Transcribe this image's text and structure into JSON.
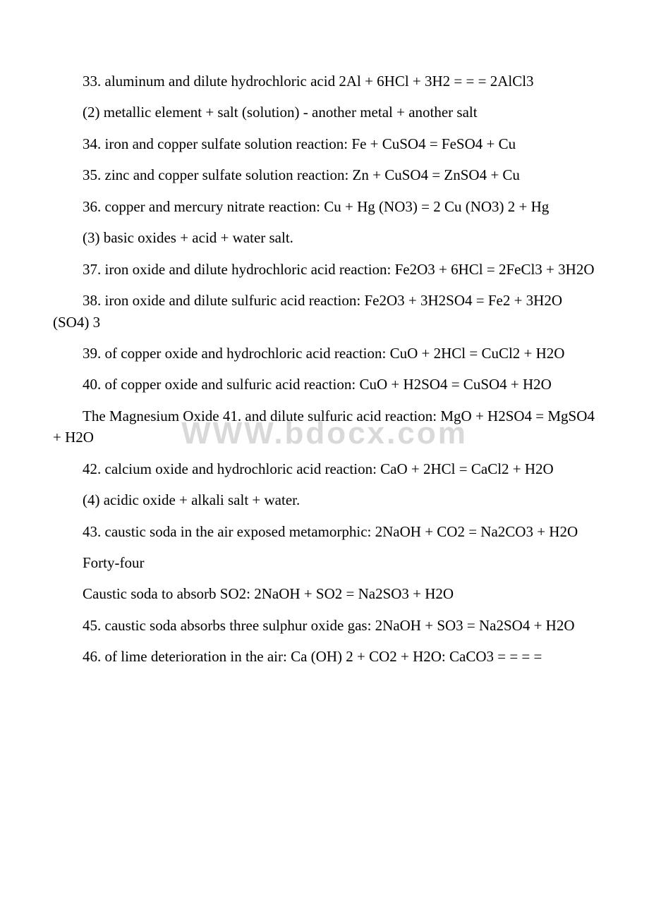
{
  "watermark": "WWW.bdocx.com",
  "paragraphs": [
    "33. aluminum and dilute hydrochloric acid 2Al + 6HCl + 3H2 = = = 2AlCl3",
    "(2) metallic element + salt (solution) - another metal + another salt",
    "34. iron and copper sulfate solution reaction: Fe + CuSO4 = FeSO4 + Cu",
    "35. zinc and copper sulfate solution reaction: Zn + CuSO4 = ZnSO4 + Cu",
    "36. copper and mercury nitrate reaction: Cu + Hg (NO3) = 2 Cu (NO3) 2 + Hg",
    "(3) basic oxides + acid + water salt.",
    "37. iron oxide and dilute hydrochloric acid reaction: Fe2O3 + 6HCl = 2FeCl3 + 3H2O",
    "38. iron oxide and dilute sulfuric acid reaction: Fe2O3 + 3H2SO4 = Fe2 + 3H2O (SO4) 3",
    "39. of copper oxide and hydrochloric acid reaction: CuO + 2HCl = CuCl2 + H2O",
    "40. of copper oxide and sulfuric acid reaction: CuO + H2SO4 = CuSO4 + H2O",
    "The Magnesium Oxide 41. and dilute sulfuric acid reaction: MgO + H2SO4 = MgSO4 + H2O",
    "42. calcium oxide and hydrochloric acid reaction: CaO + 2HCl = CaCl2 + H2O",
    "(4) acidic oxide + alkali salt + water.",
    "43. caustic soda in the air exposed metamorphic: 2NaOH + CO2 = Na2CO3 + H2O",
    "Forty-four",
    "Caustic soda to absorb SO2: 2NaOH + SO2 = Na2SO3 + H2O",
    "45. caustic soda absorbs three sulphur oxide gas: 2NaOH + SO3 = Na2SO4 + H2O",
    "46. of lime deterioration in the air: Ca (OH) 2 + CO2 + H2O: CaCO3 = = = ="
  ]
}
